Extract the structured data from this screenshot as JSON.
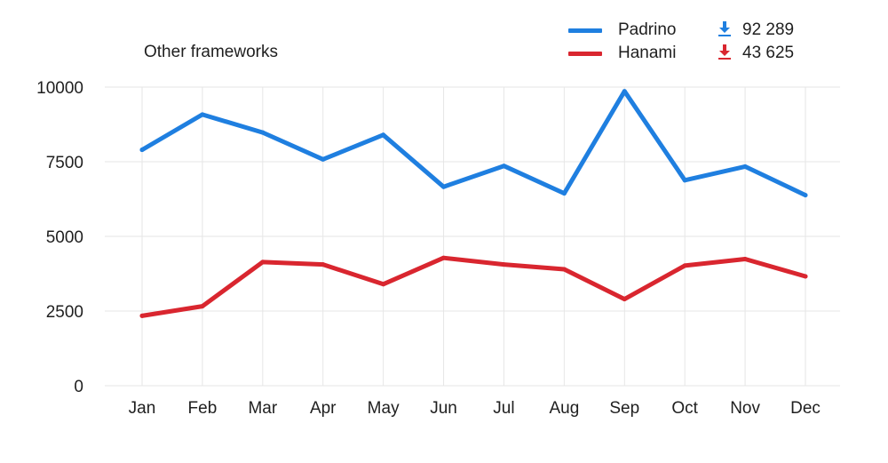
{
  "chart_data": {
    "type": "line",
    "title": "Other frameworks",
    "categories": [
      "Jan",
      "Feb",
      "Mar",
      "Apr",
      "May",
      "Jun",
      "Jul",
      "Aug",
      "Sep",
      "Oct",
      "Nov",
      "Dec"
    ],
    "series": [
      {
        "name": "Padrino",
        "color": "#1f7fe0",
        "total": "92 289",
        "icon": "download-icon",
        "values": [
          7900,
          9080,
          8480,
          7580,
          8400,
          6660,
          7360,
          6440,
          9860,
          6880,
          7340,
          6380
        ]
      },
      {
        "name": "Hanami",
        "color": "#d9262f",
        "total": "43 625",
        "icon": "download-icon",
        "values": [
          2340,
          2660,
          4140,
          4060,
          3400,
          4280,
          4060,
          3900,
          2900,
          4020,
          4240,
          3660
        ]
      }
    ],
    "ylim": [
      0,
      10000
    ],
    "yticks": [
      0,
      2500,
      5000,
      7500,
      10000
    ],
    "xlabel": "",
    "ylabel": "",
    "grid": true,
    "legend": "top-right"
  }
}
